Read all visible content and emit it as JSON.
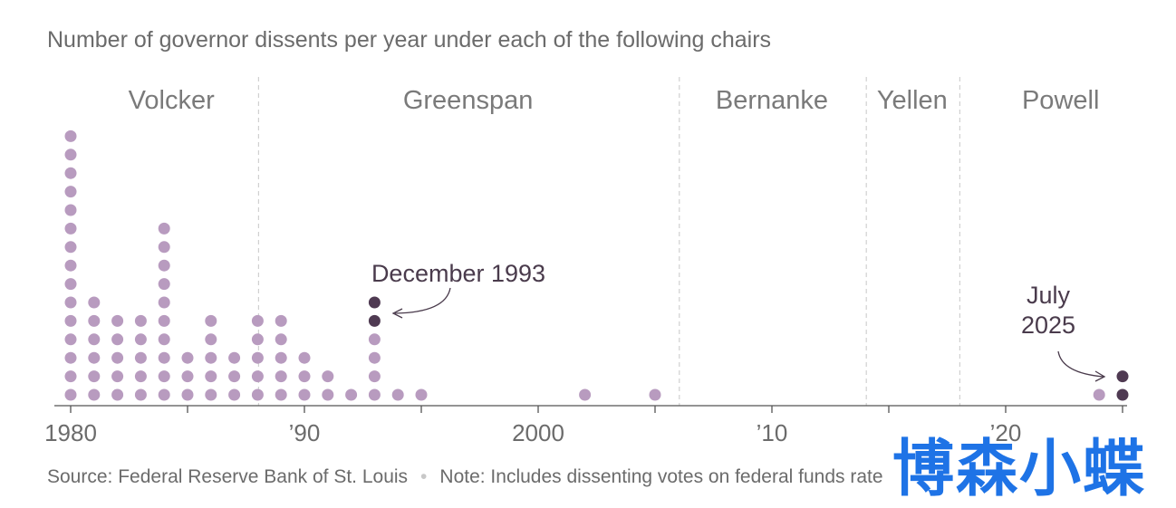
{
  "chart_data": {
    "type": "dot",
    "title": "Number of governor dissents per year under each of the following chairs",
    "xlim": [
      1980,
      2025
    ],
    "x_ticks": [
      1980,
      1985,
      1990,
      1995,
      2000,
      2005,
      2010,
      2015,
      2020,
      2025
    ],
    "x_tick_labels": [
      {
        "year": 1980,
        "label": "1980"
      },
      {
        "year": 1990,
        "label": "’90"
      },
      {
        "year": 2000,
        "label": "2000"
      },
      {
        "year": 2010,
        "label": "’10"
      },
      {
        "year": 2020,
        "label": "’20"
      }
    ],
    "chairs": [
      {
        "name": "Volcker",
        "start": 1980,
        "end": 1988
      },
      {
        "name": "Greenspan",
        "start": 1988,
        "end": 2006
      },
      {
        "name": "Bernanke",
        "start": 2006,
        "end": 2014
      },
      {
        "name": "Yellen",
        "start": 2014,
        "end": 2018
      },
      {
        "name": "Powell",
        "start": 2018,
        "end": 2025
      }
    ],
    "dissents": [
      {
        "year": 1980,
        "count": 15,
        "highlight": 0
      },
      {
        "year": 1981,
        "count": 6,
        "highlight": 0
      },
      {
        "year": 1982,
        "count": 5,
        "highlight": 0
      },
      {
        "year": 1983,
        "count": 5,
        "highlight": 0
      },
      {
        "year": 1984,
        "count": 10,
        "highlight": 0
      },
      {
        "year": 1985,
        "count": 3,
        "highlight": 0
      },
      {
        "year": 1986,
        "count": 5,
        "highlight": 0
      },
      {
        "year": 1987,
        "count": 3,
        "highlight": 0
      },
      {
        "year": 1988,
        "count": 5,
        "highlight": 0
      },
      {
        "year": 1989,
        "count": 5,
        "highlight": 0
      },
      {
        "year": 1990,
        "count": 3,
        "highlight": 0
      },
      {
        "year": 1991,
        "count": 2,
        "highlight": 0
      },
      {
        "year": 1992,
        "count": 1,
        "highlight": 0
      },
      {
        "year": 1993,
        "count": 6,
        "highlight": 2
      },
      {
        "year": 1994,
        "count": 1,
        "highlight": 0
      },
      {
        "year": 1995,
        "count": 1,
        "highlight": 0
      },
      {
        "year": 2002,
        "count": 1,
        "highlight": 0
      },
      {
        "year": 2005,
        "count": 1,
        "highlight": 0
      },
      {
        "year": 2024,
        "count": 1,
        "highlight": 0
      },
      {
        "year": 2025,
        "count": 2,
        "highlight": 2
      }
    ],
    "annotations": [
      {
        "id": "december-1993",
        "lines": [
          "December 1993"
        ],
        "year": 1993
      },
      {
        "id": "july-2025",
        "lines": [
          "July",
          "2025"
        ],
        "year": 2025
      }
    ],
    "colors": {
      "dot": "#b89bbf",
      "highlight": "#4f3a52",
      "axis": "#555555",
      "divider": "#d0d0d0"
    }
  },
  "source": {
    "source_text": "Source: Federal Reserve Bank of St. Louis",
    "separator": "•",
    "note_text": "Note: Includes dissenting votes on federal funds rate"
  },
  "watermark": "博森小蝶"
}
